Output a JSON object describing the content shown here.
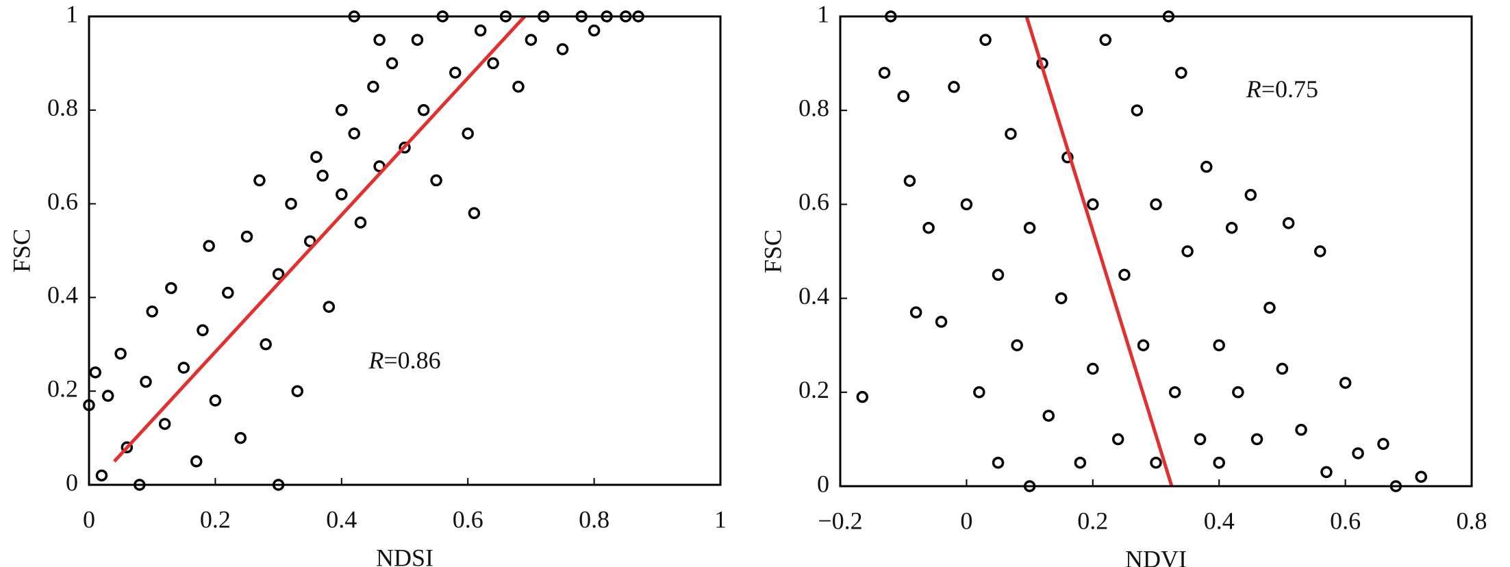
{
  "chart_data": [
    {
      "type": "scatter",
      "xlabel": "NDSI",
      "ylabel": "FSC",
      "xlim": [
        0,
        1
      ],
      "ylim": [
        0,
        1
      ],
      "xticks": [
        0,
        0.2,
        0.4,
        0.6,
        0.8,
        1
      ],
      "yticks": [
        0,
        0.2,
        0.4,
        0.6,
        0.8,
        1
      ],
      "annotation": {
        "variable": "R",
        "text": "=0.86",
        "x": 0.5,
        "y": 0.26
      },
      "series": [
        {
          "color": "#000000",
          "x": [
            0.0,
            0.01,
            0.02,
            0.03,
            0.05,
            0.06,
            0.08,
            0.09,
            0.1,
            0.12,
            0.13,
            0.15,
            0.17,
            0.18,
            0.19,
            0.2,
            0.22,
            0.24,
            0.25,
            0.27,
            0.28,
            0.3,
            0.3,
            0.32,
            0.33,
            0.35,
            0.36,
            0.38,
            0.4,
            0.42,
            0.43,
            0.45,
            0.46,
            0.48,
            0.5,
            0.52,
            0.53,
            0.55,
            0.56,
            0.58,
            0.6,
            0.61,
            0.62,
            0.64,
            0.66,
            0.68,
            0.7,
            0.72,
            0.75,
            0.78,
            0.8,
            0.82,
            0.85,
            0.87,
            0.42,
            0.46,
            0.4,
            0.37
          ],
          "y": [
            0.17,
            0.24,
            0.02,
            0.19,
            0.28,
            0.08,
            0.0,
            0.22,
            0.37,
            0.13,
            0.42,
            0.25,
            0.05,
            0.33,
            0.51,
            0.18,
            0.41,
            0.1,
            0.53,
            0.65,
            0.3,
            0.0,
            0.45,
            0.6,
            0.2,
            0.52,
            0.7,
            0.38,
            0.62,
            0.75,
            0.56,
            0.85,
            0.68,
            0.9,
            0.72,
            0.95,
            0.8,
            0.65,
            1.0,
            0.88,
            0.75,
            0.58,
            0.97,
            0.9,
            1.0,
            0.85,
            0.95,
            1.0,
            0.93,
            1.0,
            0.97,
            1.0,
            1.0,
            1.0,
            1.0,
            0.95,
            0.8,
            0.66
          ]
        }
      ],
      "fit_line": {
        "color": "#e03030",
        "x": [
          0.04,
          0.69
        ],
        "y": [
          0.05,
          1.0
        ]
      }
    },
    {
      "type": "scatter",
      "xlabel": "NDVI",
      "ylabel": "FSC",
      "xlim": [
        -0.2,
        0.8
      ],
      "ylim": [
        0,
        1
      ],
      "xticks": [
        {
          "value": -0.2,
          "label": "−0.2"
        },
        0,
        0.2,
        0.4,
        0.6,
        0.8
      ],
      "yticks": [
        0,
        0.2,
        0.4,
        0.6,
        0.8,
        1
      ],
      "annotation": {
        "variable": "R",
        "text": "=0.75",
        "x": 0.5,
        "y": 0.84
      },
      "series": [
        {
          "color": "#000000",
          "x": [
            -0.165,
            -0.13,
            -0.12,
            -0.1,
            -0.09,
            -0.08,
            -0.06,
            -0.04,
            -0.02,
            0.0,
            0.02,
            0.03,
            0.05,
            0.05,
            0.07,
            0.08,
            0.1,
            0.1,
            0.12,
            0.13,
            0.15,
            0.16,
            0.18,
            0.2,
            0.2,
            0.22,
            0.24,
            0.25,
            0.27,
            0.28,
            0.3,
            0.3,
            0.32,
            0.33,
            0.34,
            0.35,
            0.37,
            0.38,
            0.4,
            0.4,
            0.42,
            0.43,
            0.45,
            0.46,
            0.48,
            0.5,
            0.51,
            0.53,
            0.56,
            0.57,
            0.6,
            0.62,
            0.66,
            0.68,
            0.72
          ],
          "y": [
            0.19,
            0.88,
            1.0,
            0.83,
            0.65,
            0.37,
            0.55,
            0.35,
            0.85,
            0.6,
            0.2,
            0.95,
            0.05,
            0.45,
            0.75,
            0.3,
            0.0,
            0.55,
            0.9,
            0.15,
            0.4,
            0.7,
            0.05,
            0.25,
            0.6,
            0.95,
            0.1,
            0.45,
            0.8,
            0.3,
            0.6,
            0.05,
            1.0,
            0.2,
            0.88,
            0.5,
            0.1,
            0.68,
            0.3,
            0.05,
            0.55,
            0.2,
            0.62,
            0.1,
            0.38,
            0.25,
            0.56,
            0.12,
            0.5,
            0.03,
            0.22,
            0.07,
            0.09,
            0.0,
            0.02
          ]
        }
      ],
      "fit_line": {
        "color": "#e03030",
        "x": [
          0.095,
          0.325
        ],
        "y": [
          1.0,
          0.0
        ]
      }
    }
  ]
}
